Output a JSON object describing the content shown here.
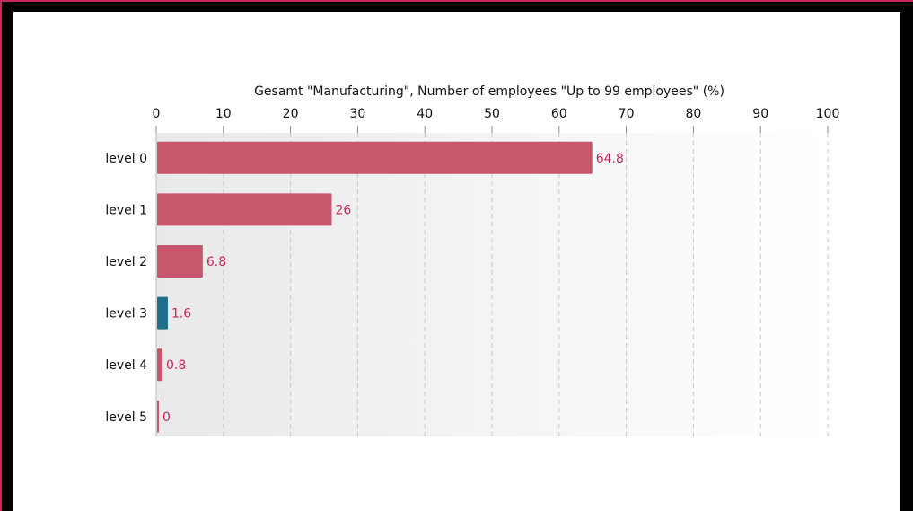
{
  "chart_data": {
    "type": "bar",
    "orientation": "horizontal",
    "title": "Gesamt \"Manufacturing\", Number of employees \"Up to 99 employees\" (%)",
    "categories": [
      "level 0",
      "level 1",
      "level 2",
      "level 3",
      "level 4",
      "level 5"
    ],
    "values": [
      64.8,
      26,
      6.8,
      1.6,
      0.8,
      0
    ],
    "value_labels": [
      "64.8",
      "26",
      "6.8",
      "1.6",
      "0.8",
      "0"
    ],
    "xlim": [
      0,
      100
    ],
    "xticks": [
      0,
      10,
      20,
      30,
      40,
      50,
      60,
      70,
      80,
      90,
      100
    ],
    "xtick_labels": [
      "0",
      "10",
      "20",
      "30",
      "40",
      "50",
      "60",
      "70",
      "80",
      "90",
      "100"
    ],
    "grid": true,
    "highlight_index": 3,
    "colors": {
      "bar": "#c8566c",
      "bar_highlight": "#1f6e8c",
      "value_label": "#c8285a",
      "frame_accent": "#c8285a",
      "grid": "#c8c8c8"
    }
  }
}
